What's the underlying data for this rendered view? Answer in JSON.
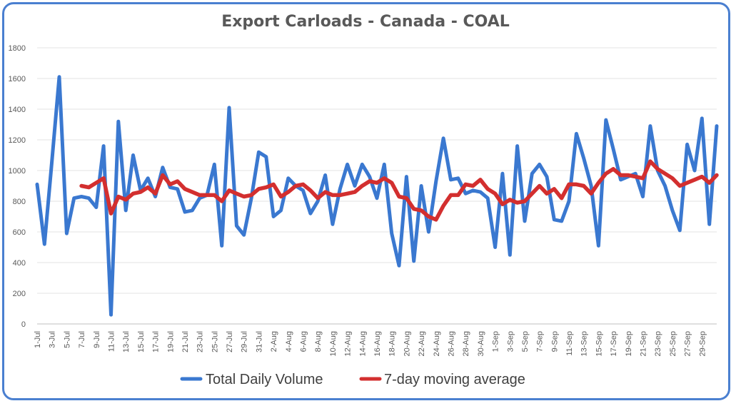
{
  "chart_data": {
    "type": "line",
    "title": "Export Carloads - Canada - COAL",
    "xlabel": "",
    "ylabel": "",
    "ylim": [
      0,
      1800
    ],
    "yticks": [
      "0",
      "200",
      "400",
      "600",
      "800",
      "1000",
      "1200",
      "1400",
      "1600",
      "1800"
    ],
    "grid": true,
    "legend_position": "bottom",
    "x_tick_labels": [
      "1-Jul",
      "3-Jul",
      "5-Jul",
      "7-Jul",
      "9-Jul",
      "11-Jul",
      "13-Jul",
      "15-Jul",
      "17-Jul",
      "19-Jul",
      "21-Jul",
      "23-Jul",
      "25-Jul",
      "27-Jul",
      "29-Jul",
      "31-Jul",
      "2-Aug",
      "4-Aug",
      "6-Aug",
      "8-Aug",
      "10-Aug",
      "12-Aug",
      "14-Aug",
      "16-Aug",
      "18-Aug",
      "20-Aug",
      "22-Aug",
      "24-Aug",
      "26-Aug",
      "28-Aug",
      "30-Aug",
      "1-Sep",
      "3-Sep",
      "5-Sep",
      "7-Sep",
      "9-Sep",
      "11-Sep",
      "13-Sep",
      "15-Sep",
      "17-Sep",
      "19-Sep",
      "21-Sep",
      "23-Sep",
      "25-Sep",
      "27-Sep",
      "29-Sep"
    ],
    "series": [
      {
        "name": "Total Daily Volume",
        "color": "#3a78d0",
        "values": [
          910,
          520,
          1060,
          1610,
          590,
          820,
          830,
          820,
          760,
          1160,
          60,
          1320,
          740,
          1100,
          870,
          950,
          830,
          1020,
          890,
          880,
          730,
          740,
          820,
          840,
          1040,
          510,
          1410,
          640,
          580,
          820,
          1120,
          1090,
          700,
          740,
          950,
          900,
          870,
          720,
          800,
          970,
          650,
          880,
          1040,
          900,
          1040,
          960,
          820,
          1040,
          590,
          380,
          960,
          410,
          900,
          600,
          930,
          1210,
          940,
          950,
          850,
          870,
          860,
          820,
          500,
          980,
          450,
          1160,
          670,
          980,
          1040,
          960,
          680,
          670,
          800,
          1240,
          1080,
          900,
          510,
          1330,
          1140,
          940,
          960,
          980,
          830,
          1290,
          1000,
          900,
          740,
          610,
          1170,
          1000,
          1340,
          650,
          1290
        ]
      },
      {
        "name": "7-day moving average",
        "color": "#d32f2f",
        "values": [
          null,
          null,
          null,
          null,
          null,
          null,
          900,
          890,
          920,
          950,
          720,
          830,
          810,
          850,
          860,
          890,
          850,
          970,
          910,
          930,
          880,
          860,
          840,
          840,
          840,
          800,
          870,
          850,
          830,
          840,
          880,
          890,
          910,
          830,
          860,
          900,
          910,
          870,
          820,
          860,
          840,
          840,
          850,
          860,
          900,
          930,
          920,
          950,
          920,
          830,
          820,
          750,
          740,
          700,
          680,
          770,
          840,
          840,
          910,
          900,
          940,
          880,
          850,
          780,
          810,
          790,
          800,
          850,
          900,
          850,
          880,
          820,
          910,
          910,
          900,
          850,
          920,
          980,
          1010,
          970,
          970,
          960,
          950,
          1060,
          1010,
          980,
          950,
          900,
          920,
          940,
          960,
          920,
          970
        ]
      }
    ]
  }
}
